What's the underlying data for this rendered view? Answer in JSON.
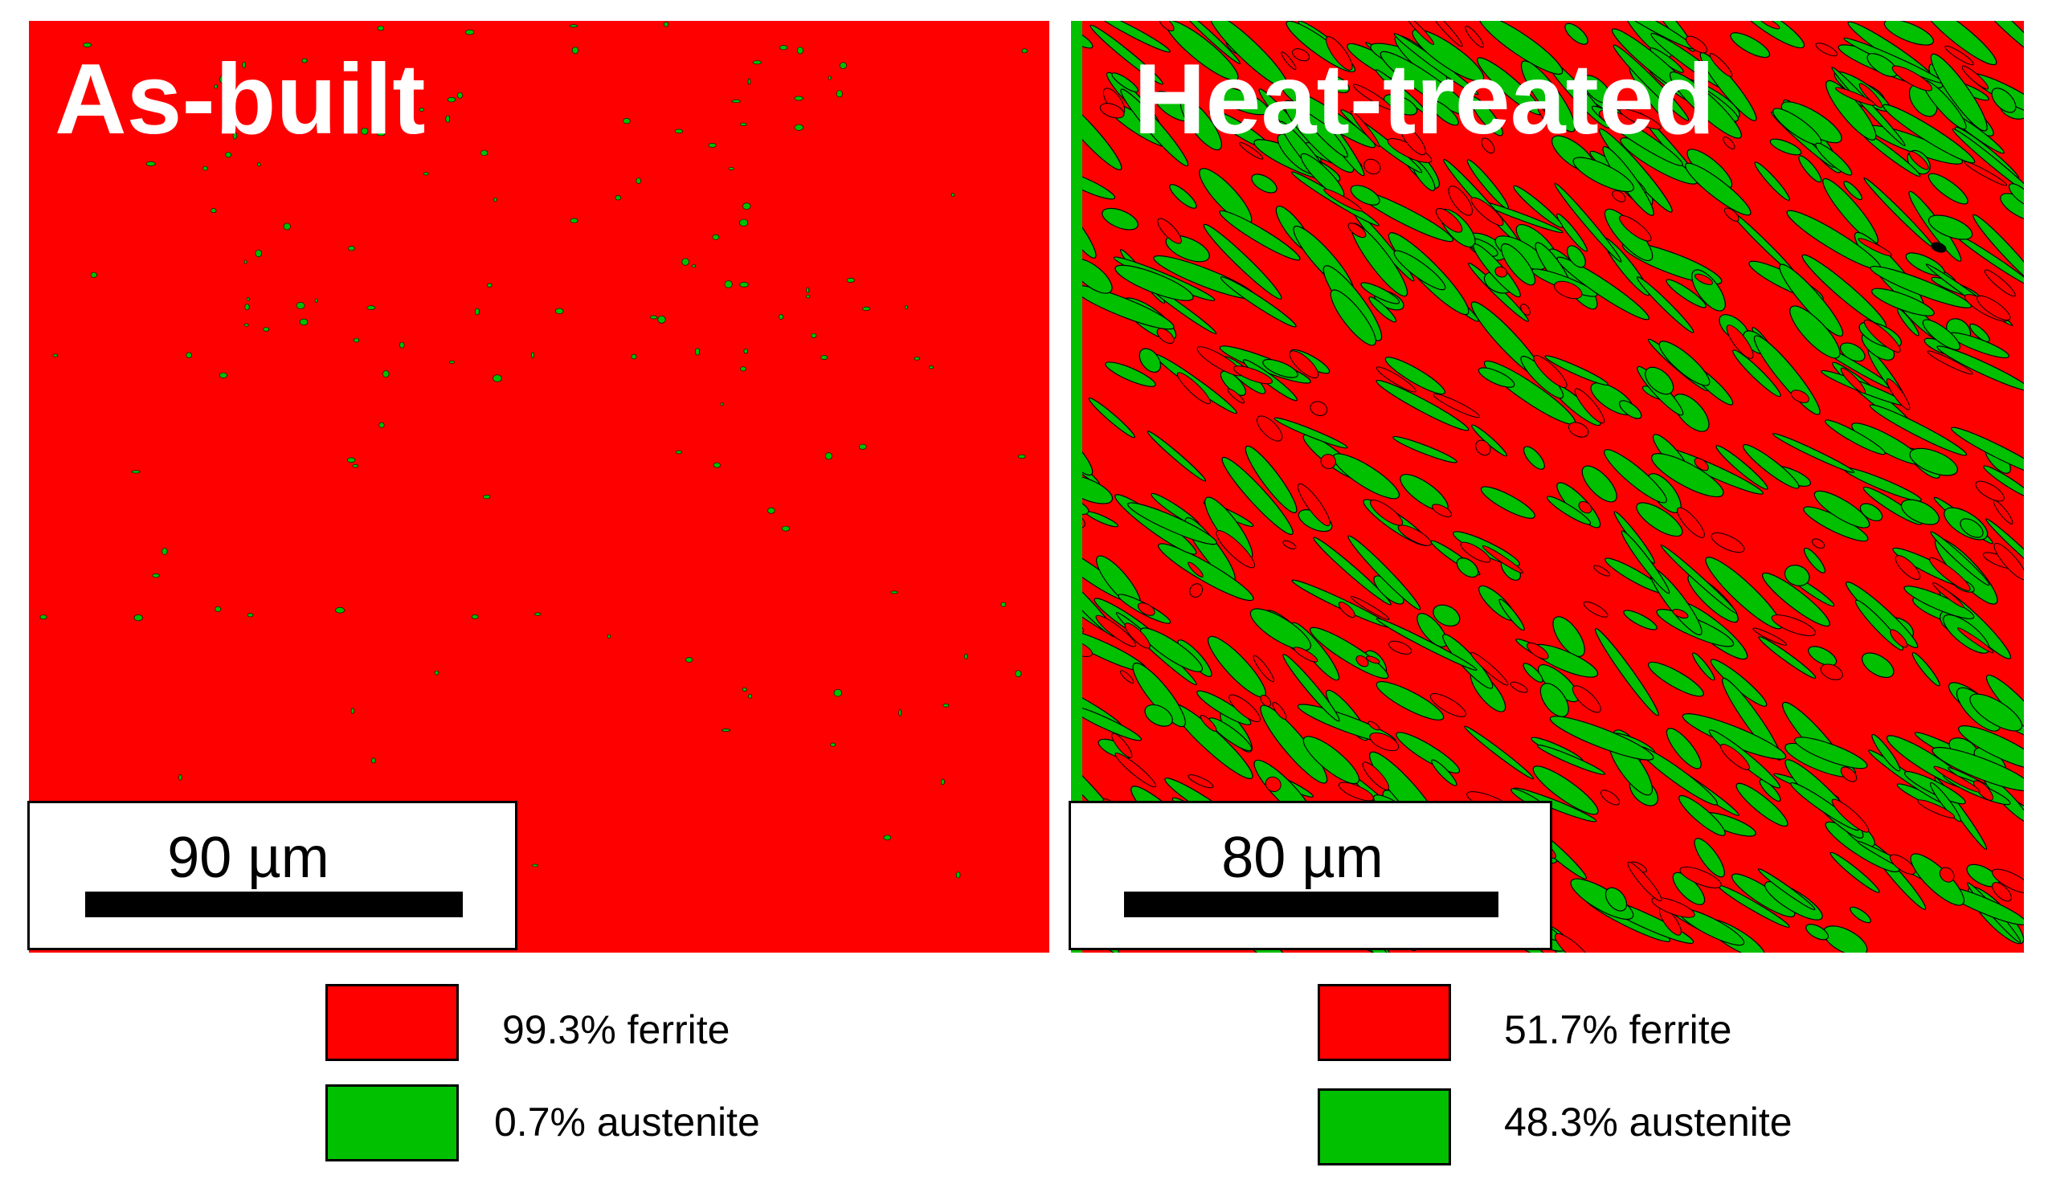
{
  "panels": [
    {
      "title": "As-built",
      "scale_label": "90 µm",
      "legend": [
        {
          "label": "99.3% ferrite",
          "color": "#ff0000",
          "phase": "ferrite",
          "fraction_percent": 99.3
        },
        {
          "label": "0.7% austenite",
          "color": "#00c000",
          "phase": "austenite",
          "fraction_percent": 0.7
        }
      ]
    },
    {
      "title": "Heat-treated",
      "scale_label": "80 µm",
      "legend": [
        {
          "label": "51.7% ferrite",
          "color": "#ff0000",
          "phase": "ferrite",
          "fraction_percent": 51.7
        },
        {
          "label": "48.3% austenite",
          "color": "#00c000",
          "phase": "austenite",
          "fraction_percent": 48.3
        }
      ]
    }
  ],
  "colors": {
    "ferrite": "#ff0000",
    "austenite": "#00c000",
    "boundary": "#000000"
  }
}
